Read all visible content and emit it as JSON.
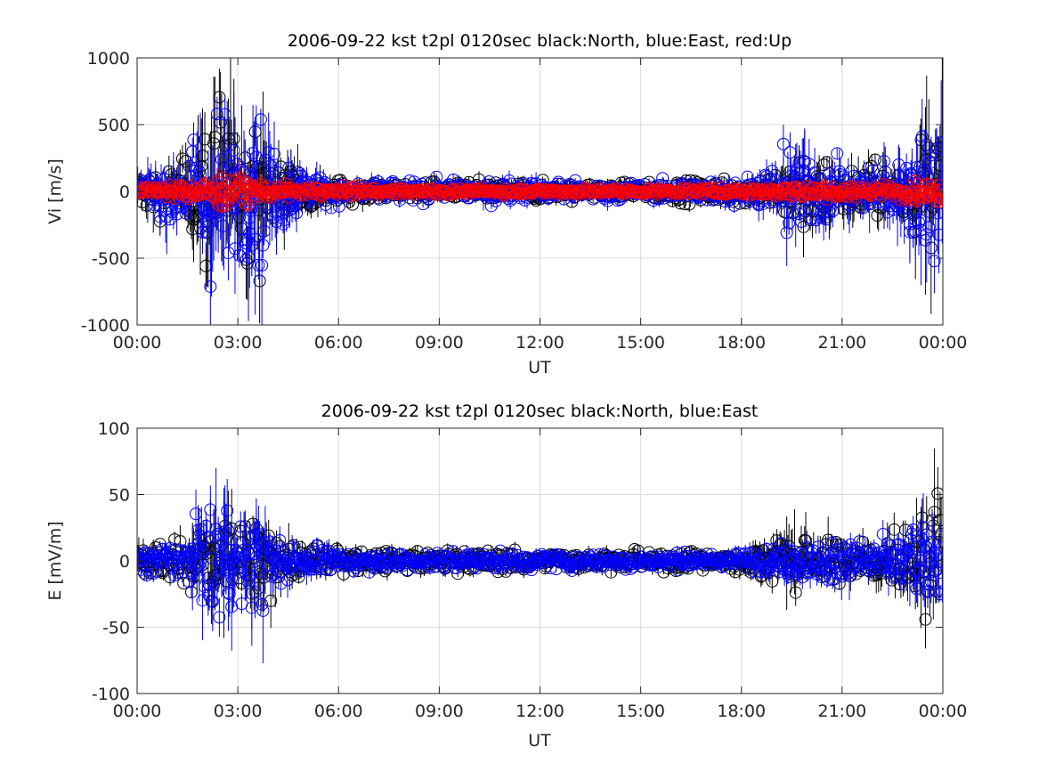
{
  "colors": {
    "north": "#000000",
    "east": "#0000ff",
    "up": "#ff0000",
    "grid": "#dcdcdc",
    "axis": "#262626"
  },
  "chart_data": [
    {
      "type": "scatter",
      "title": "2006-09-22 kst t2pl 0120sec black:North, blue:East, red:Up",
      "xlabel": "UT",
      "ylabel": "Vi [m/s]",
      "xlim": [
        "00:00",
        "24:00"
      ],
      "ylim": [
        -1000,
        1000
      ],
      "x_ticks": [
        "00:00",
        "03:00",
        "06:00",
        "09:00",
        "12:00",
        "15:00",
        "18:00",
        "21:00",
        "00:00"
      ],
      "y_ticks": [
        "1000",
        "500",
        "0",
        "-500",
        "-1000"
      ],
      "grid": true,
      "error_bars": true,
      "series": [
        {
          "name": "North",
          "color": "#000000",
          "envelope": [
            [
              0,
              150
            ],
            [
              0.5,
              180
            ],
            [
              1,
              200
            ],
            [
              1.5,
              250
            ],
            [
              1.8,
              450
            ],
            [
              2,
              600
            ],
            [
              2.3,
              800
            ],
            [
              2.6,
              700
            ],
            [
              3,
              450
            ],
            [
              3.3,
              550
            ],
            [
              3.6,
              600
            ],
            [
              3.9,
              400
            ],
            [
              4.2,
              300
            ],
            [
              4.6,
              250
            ],
            [
              5,
              150
            ],
            [
              6,
              90
            ],
            [
              8,
              70
            ],
            [
              10,
              80
            ],
            [
              12,
              75
            ],
            [
              14,
              70
            ],
            [
              15,
              65
            ],
            [
              16,
              80
            ],
            [
              17,
              90
            ],
            [
              18,
              100
            ],
            [
              18.8,
              130
            ],
            [
              19.3,
              250
            ],
            [
              19.6,
              280
            ],
            [
              20,
              300
            ],
            [
              21,
              220
            ],
            [
              22,
              200
            ],
            [
              23,
              300
            ],
            [
              23.5,
              500
            ],
            [
              24,
              600
            ]
          ]
        },
        {
          "name": "East",
          "color": "#0000ff",
          "envelope": [
            [
              0,
              160
            ],
            [
              0.5,
              200
            ],
            [
              1,
              250
            ],
            [
              1.5,
              280
            ],
            [
              1.8,
              500
            ],
            [
              2,
              650
            ],
            [
              2.3,
              750
            ],
            [
              2.6,
              650
            ],
            [
              3,
              480
            ],
            [
              3.3,
              520
            ],
            [
              3.6,
              620
            ],
            [
              3.9,
              450
            ],
            [
              4.2,
              320
            ],
            [
              4.6,
              260
            ],
            [
              5,
              160
            ],
            [
              6,
              100
            ],
            [
              8,
              80
            ],
            [
              10,
              90
            ],
            [
              12,
              85
            ],
            [
              14,
              80
            ],
            [
              15,
              70
            ],
            [
              16,
              85
            ],
            [
              17,
              95
            ],
            [
              18,
              110
            ],
            [
              18.8,
              150
            ],
            [
              19.3,
              380
            ],
            [
              19.6,
              400
            ],
            [
              20,
              280
            ],
            [
              21,
              230
            ],
            [
              22,
              220
            ],
            [
              23,
              320
            ],
            [
              23.5,
              550
            ],
            [
              24,
              650
            ]
          ]
        },
        {
          "name": "Up",
          "color": "#ff0000",
          "envelope": [
            [
              0,
              40
            ],
            [
              1,
              50
            ],
            [
              2,
              90
            ],
            [
              2.5,
              120
            ],
            [
              3,
              100
            ],
            [
              3.5,
              90
            ],
            [
              4,
              60
            ],
            [
              5,
              40
            ],
            [
              8,
              25
            ],
            [
              12,
              25
            ],
            [
              16,
              25
            ],
            [
              18,
              30
            ],
            [
              19,
              50
            ],
            [
              20,
              60
            ],
            [
              22,
              50
            ],
            [
              23,
              70
            ],
            [
              24,
              90
            ]
          ]
        }
      ]
    },
    {
      "type": "scatter",
      "title": "2006-09-22 kst t2pl 0120sec black:North, blue:East",
      "xlabel": "UT",
      "ylabel": "E [mV/m]",
      "xlim": [
        "00:00",
        "24:00"
      ],
      "ylim": [
        -100,
        100
      ],
      "x_ticks": [
        "00:00",
        "03:00",
        "06:00",
        "09:00",
        "12:00",
        "15:00",
        "18:00",
        "21:00",
        "00:00"
      ],
      "y_ticks": [
        "100",
        "50",
        "0",
        "-50",
        "-100"
      ],
      "grid": true,
      "error_bars": true,
      "series": [
        {
          "name": "North",
          "color": "#000000",
          "envelope": [
            [
              0,
              12
            ],
            [
              0.5,
              14
            ],
            [
              1,
              14
            ],
            [
              1.5,
              18
            ],
            [
              2,
              35
            ],
            [
              2.3,
              45
            ],
            [
              2.6,
              42
            ],
            [
              3,
              30
            ],
            [
              3.4,
              38
            ],
            [
              3.8,
              30
            ],
            [
              4.2,
              20
            ],
            [
              5,
              12
            ],
            [
              6,
              9
            ],
            [
              8,
              8
            ],
            [
              10,
              8
            ],
            [
              12,
              8
            ],
            [
              14,
              7
            ],
            [
              16,
              7
            ],
            [
              18,
              9
            ],
            [
              18.8,
              18
            ],
            [
              19.3,
              30
            ],
            [
              19.6,
              35
            ],
            [
              20,
              18
            ],
            [
              21,
              16
            ],
            [
              22,
              18
            ],
            [
              23,
              25
            ],
            [
              23.5,
              45
            ],
            [
              24,
              50
            ]
          ]
        },
        {
          "name": "East",
          "color": "#0000ff",
          "envelope": [
            [
              0,
              10
            ],
            [
              0.5,
              12
            ],
            [
              1,
              14
            ],
            [
              1.5,
              20
            ],
            [
              2,
              38
            ],
            [
              2.3,
              50
            ],
            [
              2.6,
              55
            ],
            [
              3,
              30
            ],
            [
              3.4,
              35
            ],
            [
              3.8,
              38
            ],
            [
              4.2,
              20
            ],
            [
              5,
              12
            ],
            [
              6,
              8
            ],
            [
              8,
              7
            ],
            [
              10,
              7
            ],
            [
              12,
              7
            ],
            [
              14,
              6
            ],
            [
              16,
              6
            ],
            [
              18,
              7
            ],
            [
              18.8,
              10
            ],
            [
              19.3,
              15
            ],
            [
              20,
              16
            ],
            [
              21,
              16
            ],
            [
              22,
              16
            ],
            [
              23,
              25
            ],
            [
              23.5,
              30
            ],
            [
              24,
              32
            ]
          ]
        }
      ]
    }
  ]
}
